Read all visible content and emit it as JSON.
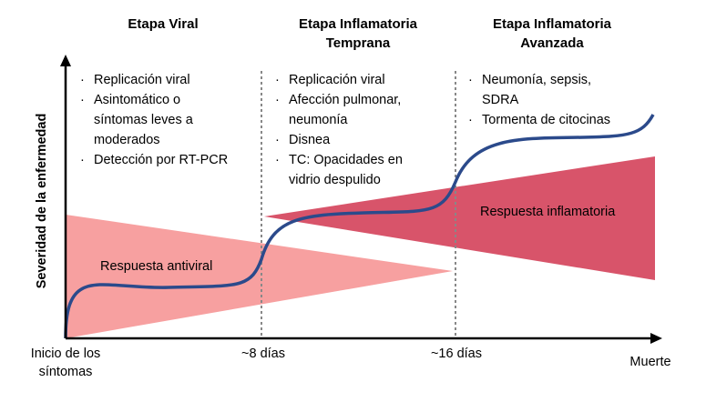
{
  "colors": {
    "antiviral": "#f7a0a0",
    "inflammatory": "#d8546a",
    "curve": "#2b4a8b",
    "axis": "#000000",
    "divider": "#888888"
  },
  "phases": [
    {
      "title_lines": [
        "Etapa Viral"
      ],
      "bullets": [
        [
          "Replicación viral"
        ],
        [
          "Asintomático o",
          "síntomas leves a",
          "moderados"
        ],
        [
          "Detección por RT-PCR"
        ]
      ]
    },
    {
      "title_lines": [
        "Etapa Inflamatoria",
        "Temprana"
      ],
      "bullets": [
        [
          "Replicación viral"
        ],
        [
          "Afección pulmonar,",
          "neumonía"
        ],
        [
          "Disnea"
        ],
        [
          "TC: Opacidades en",
          "vidrio despulido"
        ]
      ]
    },
    {
      "title_lines": [
        "Etapa Inflamatoria",
        "Avanzada"
      ],
      "bullets": [
        [
          "Neumonía, sepsis,",
          "SDRA"
        ],
        [
          "Tormenta de citocinas"
        ]
      ]
    }
  ],
  "bullet_glyph": "·",
  "regions": {
    "antiviral_label": "Respuesta antiviral",
    "inflammatory_label": "Respuesta inflamatoria"
  },
  "axis": {
    "y_label": "Severidad de la enfermedad",
    "x_end_label": "Muerte",
    "ticks": [
      {
        "lines": [
          "Inicio de los",
          "síntomas"
        ]
      },
      {
        "lines": [
          "~8 días"
        ]
      },
      {
        "lines": [
          "~16 días"
        ]
      }
    ]
  }
}
